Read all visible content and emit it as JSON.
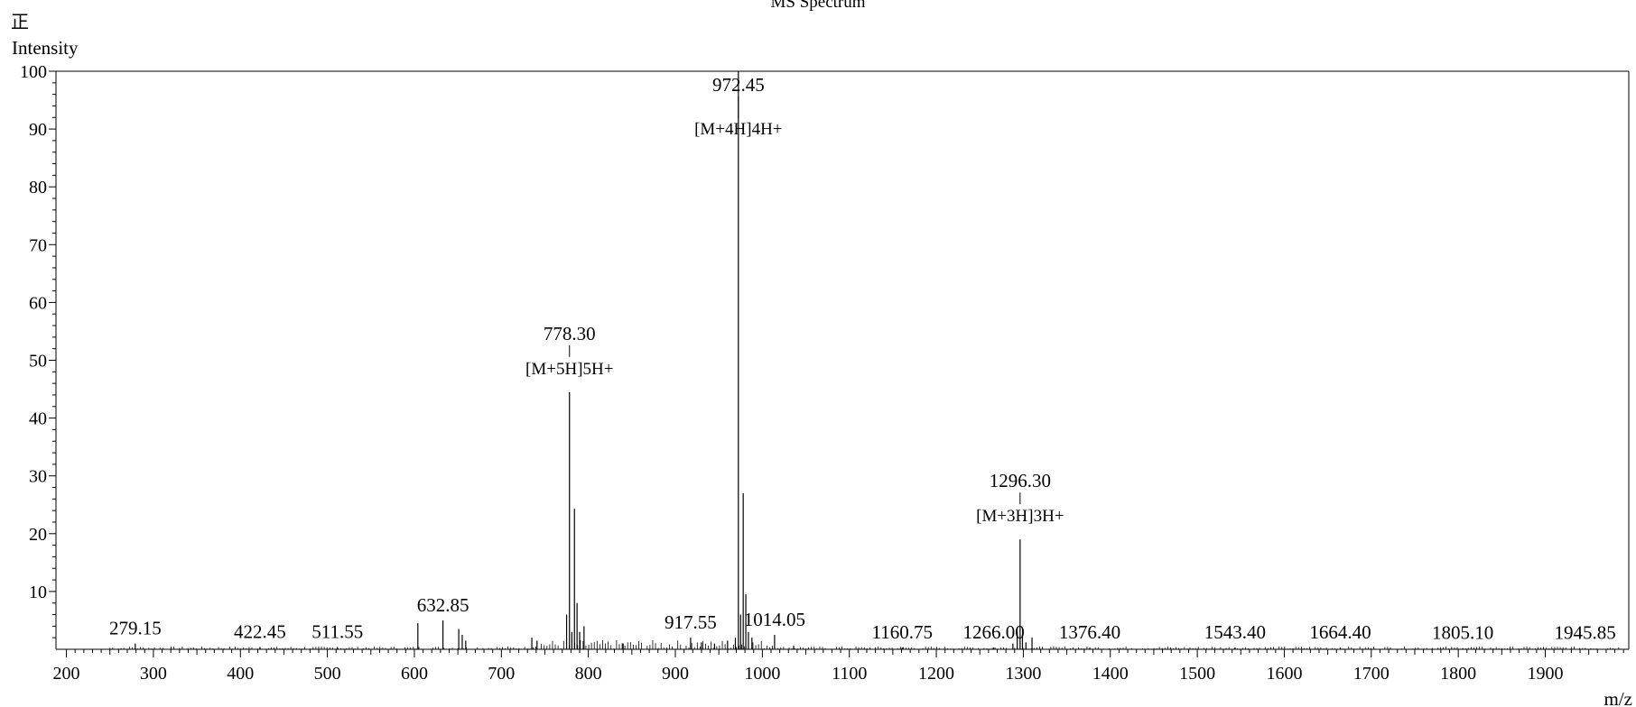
{
  "polarity_mark": "正",
  "chart_data": {
    "type": "bar",
    "title": "MS Spectrum",
    "xlabel": "m/z",
    "ylabel": "Intensity",
    "xlim": [
      188,
      1996
    ],
    "ylim": [
      0,
      100
    ],
    "x_ticks": [
      200,
      300,
      400,
      500,
      600,
      700,
      800,
      900,
      1000,
      1100,
      1200,
      1300,
      1400,
      1500,
      1600,
      1700,
      1800,
      1900
    ],
    "y_ticks": [
      10,
      20,
      30,
      40,
      50,
      60,
      70,
      80,
      90,
      100
    ],
    "grid": false,
    "legend": "none",
    "series": [
      {
        "x": [
          279.15,
          422.45,
          511.55,
          604.0,
          632.85,
          651.0,
          655.0,
          659.0,
          735.0,
          741.0,
          775.0,
          778.3,
          781.0,
          784.0,
          787.0,
          790.0,
          795.0,
          840.0,
          917.55,
          930.0,
          945.0,
          960.0,
          969.0,
          972.45,
          975.0,
          978.0,
          981.0,
          984.0,
          988.0,
          1014.05,
          1036.0,
          1160.75,
          1266.0,
          1288.0,
          1293.0,
          1296.3,
          1299.0,
          1303.0,
          1310.0,
          1376.4,
          1543.4,
          1664.4,
          1805.1,
          1945.85
        ],
        "values": [
          1.0,
          0.4,
          0.4,
          4.5,
          5.0,
          3.5,
          2.5,
          1.5,
          2.0,
          1.5,
          6.0,
          44.5,
          3.0,
          24.3,
          8.0,
          3.0,
          4.0,
          1.0,
          2.0,
          1.2,
          1.0,
          1.5,
          2.0,
          100,
          6.0,
          27.0,
          9.5,
          3.0,
          2.0,
          2.5,
          0.6,
          0.3,
          0.3,
          1.0,
          3.0,
          19.0,
          2.5,
          1.2,
          2.0,
          0.3,
          0.3,
          0.3,
          0.2,
          0.2
        ]
      }
    ],
    "peak_labels": [
      {
        "x": 279.15,
        "text": "279.15",
        "y": 1.0
      },
      {
        "x": 422.45,
        "text": "422.45",
        "y": 0.4
      },
      {
        "x": 511.55,
        "text": "511.55",
        "y": 0.4
      },
      {
        "x": 632.85,
        "text": "632.85",
        "y": 5.0
      },
      {
        "x": 778.3,
        "text": "778.30",
        "y": 44.5
      },
      {
        "x": 917.55,
        "text": "917.55",
        "y": 2.0
      },
      {
        "x": 972.45,
        "text": "972.45",
        "y": 100
      },
      {
        "x": 1014.05,
        "text": "1014.05",
        "y": 2.5
      },
      {
        "x": 1160.75,
        "text": "1160.75",
        "y": 0.3
      },
      {
        "x": 1266.0,
        "text": "1266.00",
        "y": 0.3
      },
      {
        "x": 1296.3,
        "text": "1296.30",
        "y": 19.0
      },
      {
        "x": 1376.4,
        "text": "1376.40",
        "y": 0.3
      },
      {
        "x": 1543.4,
        "text": "1543.40",
        "y": 0.3
      },
      {
        "x": 1664.4,
        "text": "1664.40",
        "y": 0.3
      },
      {
        "x": 1805.1,
        "text": "1805.10",
        "y": 0.2
      },
      {
        "x": 1945.85,
        "text": "1945.85",
        "y": 0.2
      }
    ],
    "annotations": [
      {
        "x": 778.3,
        "text": "[M+5H]5H+"
      },
      {
        "x": 972.45,
        "text": "[M+4H]4H+"
      },
      {
        "x": 1296.3,
        "text": "[M+3H]3H+"
      }
    ]
  }
}
